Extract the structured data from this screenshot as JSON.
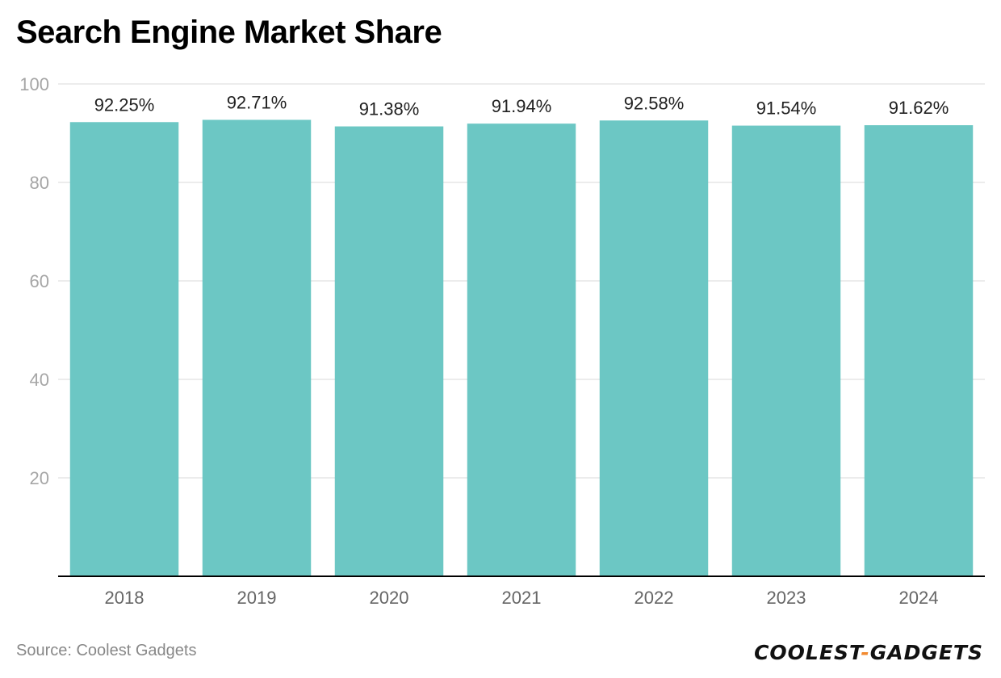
{
  "chart_data": {
    "type": "bar",
    "title": "Search Engine Market Share",
    "categories": [
      "2018",
      "2019",
      "2020",
      "2021",
      "2022",
      "2023",
      "2024"
    ],
    "values": [
      92.25,
      92.71,
      91.38,
      91.94,
      92.58,
      91.54,
      91.62
    ],
    "value_labels": [
      "92.25%",
      "92.71%",
      "91.38%",
      "91.94%",
      "92.58%",
      "91.54%",
      "91.62%"
    ],
    "xlabel": "",
    "ylabel": "",
    "ylim": [
      0,
      100
    ],
    "yticks": [
      20,
      40,
      60,
      80,
      100
    ],
    "grid": true,
    "legend": "none",
    "colors": {
      "bar": "#6cc7c4",
      "grid": "#e5e5e5",
      "axis": "#000000",
      "tick_text": "#a6a6a6",
      "category_text": "#666666",
      "value_text": "#222222"
    }
  },
  "source": "Source: Coolest Gadgets",
  "logo": {
    "left": "COOLEST",
    "dash": "-",
    "right": "GADGETS",
    "accent_color": "#f28a30"
  }
}
